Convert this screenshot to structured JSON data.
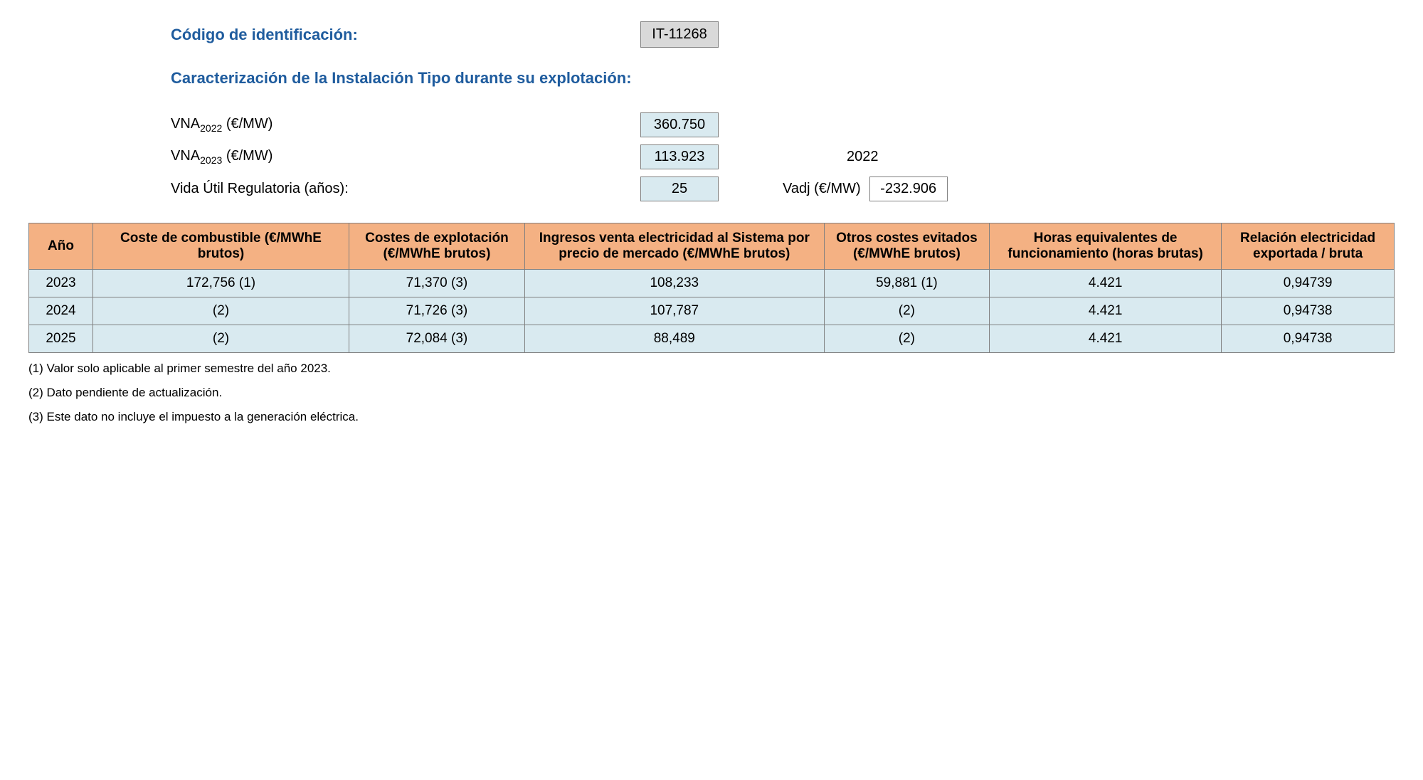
{
  "header": {
    "id_label": "Código de identificación:",
    "id_value": "IT-11268",
    "subtitle": "Caracterización de la Instalación Tipo durante su explotación:"
  },
  "params": {
    "vna2022_label_prefix": "VNA",
    "vna2022_sub": "2022",
    "vna2022_unit": " (€/MW)",
    "vna2022_value": "360.750",
    "vna2023_label_prefix": "VNA",
    "vna2023_sub": "2023",
    "vna2023_unit": " (€/MW)",
    "vna2023_value": "113.923",
    "year_right": "2022",
    "vida_label": "Vida Útil Regulatoria (años):",
    "vida_value": "25",
    "vadj_label": "Vadj (€/MW)",
    "vadj_value": "-232.906"
  },
  "table": {
    "headers": {
      "year": "Año",
      "combustible": "Coste de combustible (€/MWhE brutos)",
      "explotacion": "Costes de explotación (€/MWhE brutos)",
      "ingresos": "Ingresos venta electricidad al Sistema por precio de mercado (€/MWhE brutos)",
      "otros": "Otros costes evitados (€/MWhE brutos)",
      "horas": "Horas equivalentes de funcionamiento (horas brutas)",
      "relacion": "Relación electricidad exportada / bruta"
    },
    "rows": [
      {
        "year": "2023",
        "combustible": "172,756 (1)",
        "explotacion": "71,370 (3)",
        "ingresos": "108,233",
        "otros": "59,881 (1)",
        "horas": "4.421",
        "relacion": "0,94739"
      },
      {
        "year": "2024",
        "combustible": "(2)",
        "explotacion": "71,726 (3)",
        "ingresos": "107,787",
        "otros": "(2)",
        "horas": "4.421",
        "relacion": "0,94738"
      },
      {
        "year": "2025",
        "combustible": "(2)",
        "explotacion": "72,084 (3)",
        "ingresos": "88,489",
        "otros": "(2)",
        "horas": "4.421",
        "relacion": "0,94738"
      }
    ]
  },
  "footnotes": {
    "n1": "(1) Valor solo aplicable al primer semestre del año 2023.",
    "n2": "(2) Dato pendiente de actualización.",
    "n3": "(3) Este dato no incluye el impuesto a la generación eléctrica."
  },
  "colors": {
    "header_bg": "#f4b183",
    "cell_bg": "#d9eaf0",
    "id_box_bg": "#d9d9d9",
    "title_color": "#1f5c9e",
    "border": "#808080"
  }
}
